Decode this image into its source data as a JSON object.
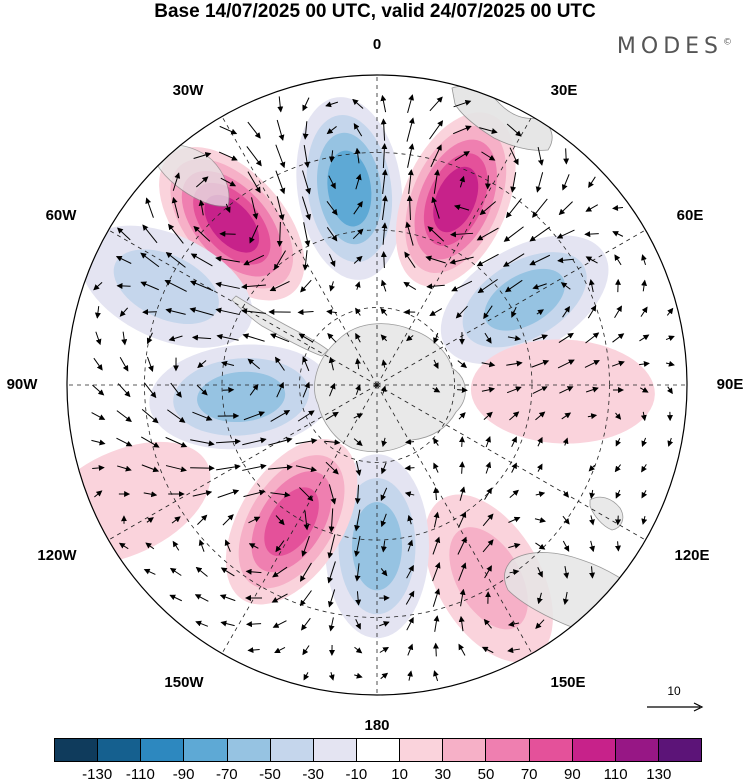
{
  "title": "Base 14/07/2025 00 UTC, valid 24/07/2025 00 UTC",
  "brand": "MODES",
  "brand_mark": "©",
  "longitude_labels": {
    "lon_0": "0",
    "lon_30e": "30E",
    "lon_60e": "60E",
    "lon_90e": "90E",
    "lon_120e": "120E",
    "lon_150e": "150E",
    "lon_180": "180",
    "lon_150w": "150W",
    "lon_120w": "120W",
    "lon_90w": "90W",
    "lon_60w": "60W",
    "lon_30w": "30W"
  },
  "reference_vector": {
    "label": "10"
  },
  "colorbar": {
    "colors": [
      "#0f3b5c",
      "#15608f",
      "#2d88bf",
      "#5ea9d5",
      "#96c3e2",
      "#c5d6ec",
      "#e4e4f2",
      "#ffffff",
      "#fad3dc",
      "#f6b0c7",
      "#ef7fb0",
      "#e4519a",
      "#c7228a",
      "#971785",
      "#5c1478"
    ],
    "ticks": [
      "-130",
      "-110",
      "-90",
      "-70",
      "-50",
      "-30",
      "-10",
      "10",
      "30",
      "50",
      "70",
      "90",
      "110",
      "130"
    ]
  },
  "anomalies": [
    {
      "lon": -42,
      "dist": 0.7,
      "value": 110
    },
    {
      "lon": -8,
      "dist": 0.64,
      "value": -90
    },
    {
      "lon": 23,
      "dist": 0.65,
      "value": 110
    },
    {
      "lon": 60,
      "dist": 0.55,
      "value": -70
    },
    {
      "lon": 92,
      "dist": 0.6,
      "value": 30
    },
    {
      "lon": 130,
      "dist": 0.52,
      "value": -10
    },
    {
      "lon": 150,
      "dist": 0.72,
      "value": 50
    },
    {
      "lon": 180,
      "dist": 0.52,
      "value": -70
    },
    {
      "lon": -148,
      "dist": 0.52,
      "value": 90
    },
    {
      "lon": -95,
      "dist": 0.44,
      "value": -70
    },
    {
      "lon": -65,
      "dist": 0.75,
      "value": -50
    },
    {
      "lon": -115,
      "dist": 0.9,
      "value": 30
    }
  ]
}
